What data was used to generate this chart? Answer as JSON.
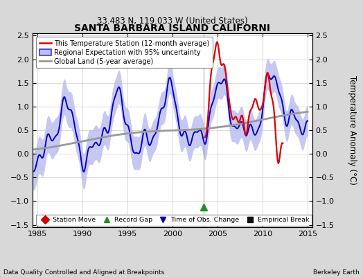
{
  "title": "SANTA BARBARA ISLAND CALIFORNI",
  "subtitle": "33.483 N, 119.033 W (United States)",
  "ylabel": "Temperature Anomaly (°C)",
  "xlabel_left": "Data Quality Controlled and Aligned at Breakpoints",
  "xlabel_right": "Berkeley Earth",
  "xlim": [
    1984.5,
    2015.5
  ],
  "ylim": [
    -1.55,
    2.55
  ],
  "yticks": [
    -1.5,
    -1.0,
    -0.5,
    0.0,
    0.5,
    1.0,
    1.5,
    2.0,
    2.5
  ],
  "xticks": [
    1985,
    1990,
    1995,
    2000,
    2005,
    2010,
    2015
  ],
  "bg_color": "#d8d8d8",
  "plot_bg_color": "#ffffff",
  "grid_color": "#c0c0c0",
  "blue_line_color": "#0000cc",
  "blue_fill_color": "#aaaaee",
  "red_line_color": "#dd0000",
  "gray_line_color": "#999999",
  "vline_x": 2003.5,
  "record_gap_x": 2003.5,
  "record_gap_y": -1.12,
  "legend_items": [
    {
      "label": "This Temperature Station (12-month average)",
      "color": "#dd0000"
    },
    {
      "label": "Regional Expectation with 95% uncertainty",
      "color": "#0000cc"
    },
    {
      "label": "Global Land (5-year average)",
      "color": "#999999"
    }
  ],
  "bottom_legend": [
    {
      "label": "Station Move",
      "color": "#cc0000",
      "marker": "D"
    },
    {
      "label": "Record Gap",
      "color": "#228B22",
      "marker": "^"
    },
    {
      "label": "Time of Obs. Change",
      "color": "#0000aa",
      "marker": "v"
    },
    {
      "label": "Empirical Break",
      "color": "#111111",
      "marker": "s"
    }
  ]
}
